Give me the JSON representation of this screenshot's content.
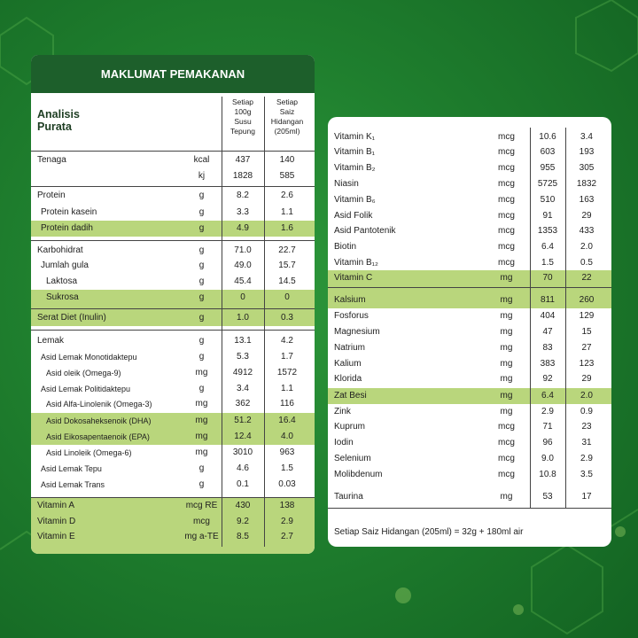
{
  "left": {
    "title": "MAKLUMAT PEMAKANAN",
    "heading": "Analisis\nPurata",
    "columns": [
      "Setiap\n100g\nSusu\nTepung",
      "Setiap\nSaiz\nHidangan\n(205ml)"
    ],
    "rows": [
      [
        "Tenaga",
        "kcal",
        "437",
        "140"
      ],
      [
        null,
        "kj",
        "1828",
        "585"
      ],
      [
        "Protein",
        "g",
        "8.2",
        "2.6"
      ],
      [
        "Protein kasein",
        "g",
        "3.3",
        "1.1"
      ],
      [
        "Protein dadih",
        "g",
        "4.9",
        "1.6"
      ],
      [
        "Karbohidrat",
        "g",
        "71.0",
        "22.7"
      ],
      [
        "Jumlah gula",
        "g",
        "49.0",
        "15.7"
      ],
      [
        "Laktosa",
        "g",
        "45.4",
        "14.5"
      ],
      [
        "Sukrosa",
        "g",
        "0",
        "0"
      ],
      [
        "Serat Diet (Inulin)",
        "g",
        "1.0",
        "0.3"
      ],
      [
        "Lemak",
        "g",
        "13.1",
        "4.2"
      ],
      [
        "Asid Lemak Monotidaktepu",
        "g",
        "5.3",
        "1.7"
      ],
      [
        "Asid oleik (Omega-9)",
        "mg",
        "4912",
        "1572"
      ],
      [
        "Asid Lemak Politidaktepu",
        "g",
        "3.4",
        "1.1"
      ],
      [
        "Asid Alfa-Linolenik (Omega-3)",
        "mg",
        "362",
        "116"
      ],
      [
        "Asid Dokosaheksenoik (DHA)",
        "mg",
        "51.2",
        "16.4"
      ],
      [
        "Asid Eikosapentaenoik (EPA)",
        "mg",
        "12.4",
        "4.0"
      ],
      [
        "Asid Linoleik (Omega-6)",
        "mg",
        "3010",
        "963"
      ],
      [
        "Asid Lemak Tepu",
        "g",
        "4.6",
        "1.5"
      ],
      [
        "Asid Lemak Trans",
        "g",
        "0.1",
        "0.03"
      ],
      [
        "Vitamin A",
        "mcg RE",
        "430",
        "138"
      ],
      [
        "Vitamin D",
        "mcg",
        "9.2",
        "2.9"
      ],
      [
        "Vitamin E",
        "mg a-TE",
        "8.5",
        "2.7"
      ]
    ]
  },
  "right": {
    "rows": [
      [
        "Vitamin K₁",
        "mcg",
        "10.6",
        "3.4"
      ],
      [
        "Vitamin B₁",
        "mcg",
        "603",
        "193"
      ],
      [
        "Vitamin B₂",
        "mcg",
        "955",
        "305"
      ],
      [
        "Niasin",
        "mcg",
        "5725",
        "1832"
      ],
      [
        "Vitamin B₆",
        "mcg",
        "510",
        "163"
      ],
      [
        "Asid Folik",
        "mcg",
        "91",
        "29"
      ],
      [
        "Asid Pantotenik",
        "mcg",
        "1353",
        "433"
      ],
      [
        "Biotin",
        "mcg",
        "6.4",
        "2.0"
      ],
      [
        "Vitamin B₁₂",
        "mcg",
        "1.5",
        "0.5"
      ],
      [
        "Vitamin C",
        "mg",
        "70",
        "22"
      ],
      [
        "Kalsium",
        "mg",
        "811",
        "260"
      ],
      [
        "Fosforus",
        "mg",
        "404",
        "129"
      ],
      [
        "Magnesium",
        "mg",
        "47",
        "15"
      ],
      [
        "Natrium",
        "mg",
        "83",
        "27"
      ],
      [
        "Kalium",
        "mg",
        "383",
        "123"
      ],
      [
        "Klorida",
        "mg",
        "92",
        "29"
      ],
      [
        "Zat Besi",
        "mg",
        "6.4",
        "2.0"
      ],
      [
        "Zink",
        "mg",
        "2.9",
        "0.9"
      ],
      [
        "Kuprum",
        "mcg",
        "71",
        "23"
      ],
      [
        "Iodin",
        "mcg",
        "96",
        "31"
      ],
      [
        "Selenium",
        "mcg",
        "9.0",
        "2.9"
      ],
      [
        "Molibdenum",
        "mcg",
        "10.8",
        "3.5"
      ],
      [
        "Taurina",
        "mg",
        "53",
        "17"
      ]
    ],
    "footnote": "Setiap Saiz Hidangan (205ml) = 32g + 180ml air"
  }
}
